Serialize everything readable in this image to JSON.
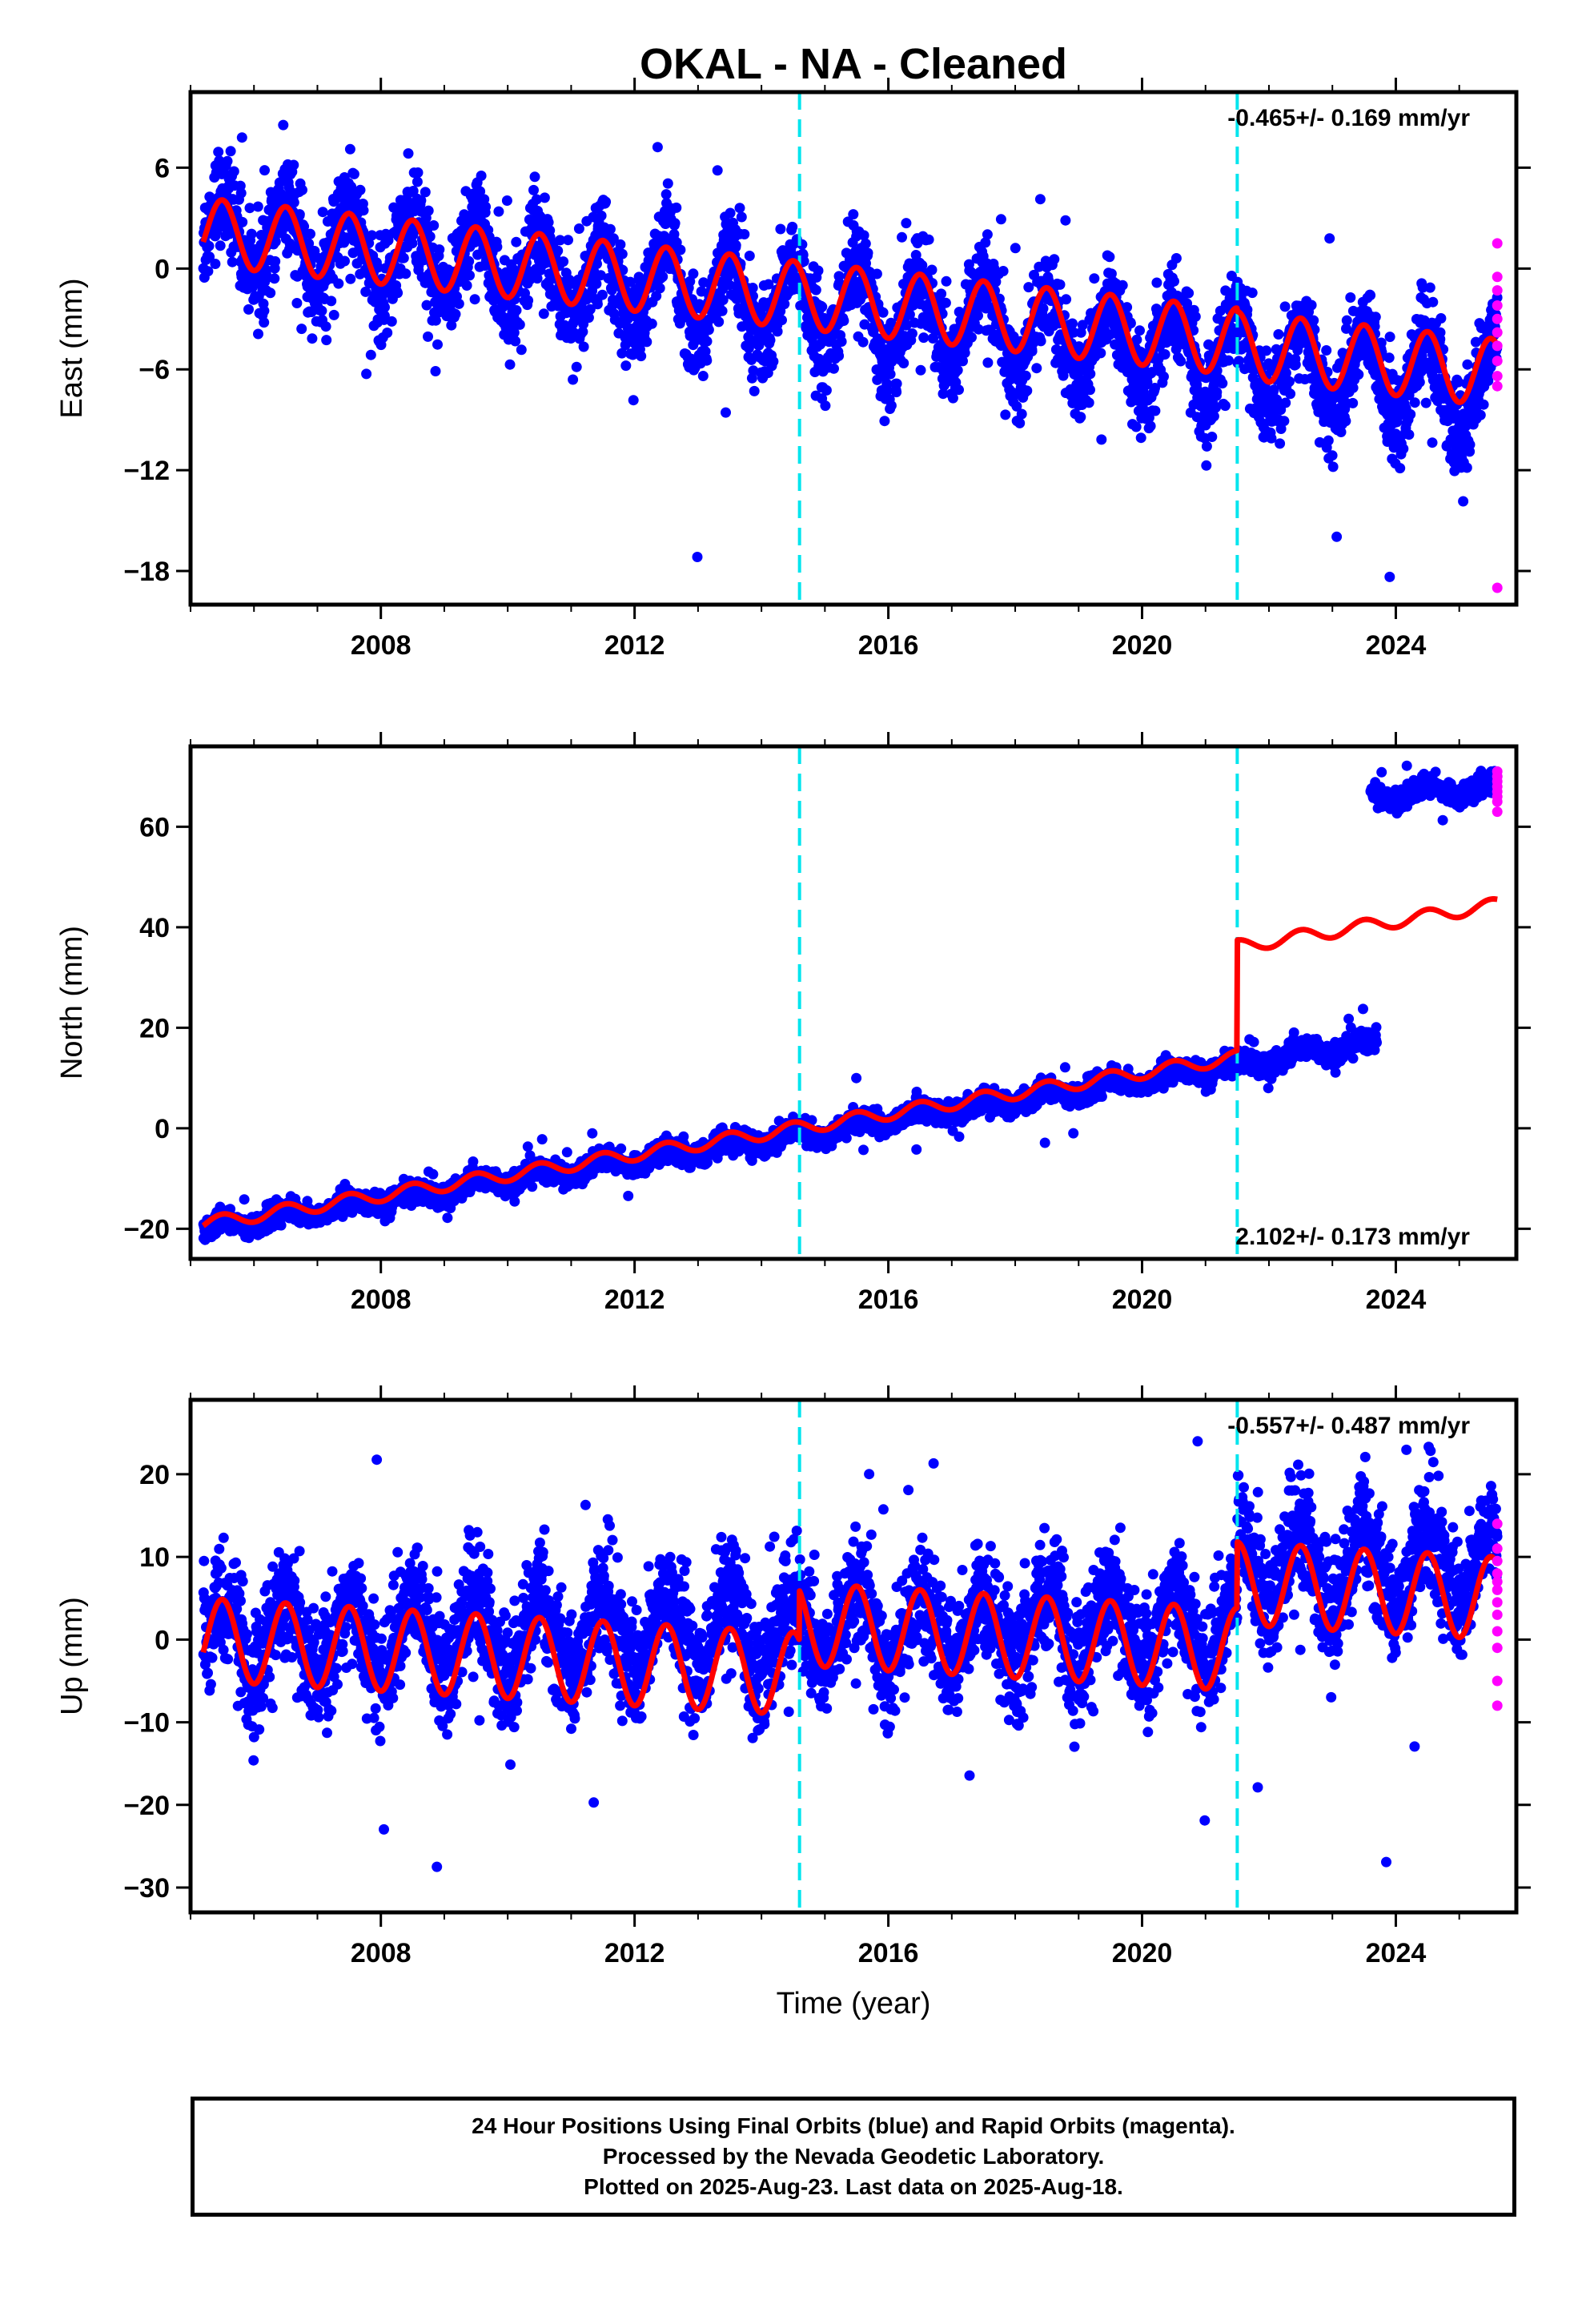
{
  "title": "OKAL  - NA - Cleaned",
  "xlabel": "Time (year)",
  "caption": [
    "24 Hour Positions Using Final Orbits (blue) and Rapid Orbits (magenta).",
    "Processed by the Nevada Geodetic Laboratory.",
    "Plotted on 2025-Aug-23. Last data on 2025-Aug-18."
  ],
  "colors": {
    "final": "#0000ff",
    "rapid": "#ff00ff",
    "model": "#ff0000",
    "offset_line": "#00e5ee"
  },
  "chart_data": [
    {
      "type": "scatter",
      "name": "east",
      "ylabel": "East (mm)",
      "rate": "-0.465+/- 0.169 mm/yr",
      "xlim": [
        2005.0,
        2025.9
      ],
      "ylim": [
        -20,
        10.5
      ],
      "xticks": [
        2008,
        2012,
        2016,
        2020,
        2024
      ],
      "yticks": [
        -18,
        -12,
        -6,
        0,
        6
      ],
      "offset_epochs": [
        2014.6,
        2021.5
      ],
      "series": [
        {
          "role": "final-orbits",
          "x_range": [
            2005.2,
            2025.6
          ],
          "trend_start": 2.2,
          "rate": -0.465,
          "annual_amplitude": 2.5,
          "spread": 2.0
        },
        {
          "role": "rapid-orbits",
          "x": [
            2025.6,
            2025.6,
            2025.6,
            2025.6,
            2025.6,
            2025.6,
            2025.6,
            2025.6,
            2025.6,
            2025.6,
            2025.6
          ],
          "y": [
            1.5,
            -0.5,
            -1.3,
            -2.2,
            -3.0,
            -3.8,
            -4.6,
            -5.5,
            -6.4,
            -7.0,
            -19.0
          ]
        },
        {
          "role": "model",
          "x_range": [
            2005.2,
            2025.6
          ],
          "y_start": 2.2,
          "y_end": -6.2,
          "annual_amplitude": 2.0,
          "offset_steps": [
            {
              "epoch": 2021.5,
              "step": -0.2
            }
          ]
        }
      ]
    },
    {
      "type": "scatter",
      "name": "north",
      "ylabel": "North (mm)",
      "rate": "2.102+/- 0.173 mm/yr",
      "xlim": [
        2005.0,
        2025.9
      ],
      "ylim": [
        -26,
        76
      ],
      "xticks": [
        2008,
        2012,
        2016,
        2020,
        2024
      ],
      "yticks": [
        -20,
        0,
        20,
        40,
        60
      ],
      "offset_epochs": [
        2014.6,
        2021.5
      ],
      "series": [
        {
          "role": "final-orbits",
          "segments": [
            {
              "x_range": [
                2005.2,
                2023.7
              ],
              "y_start": -20.0,
              "y_end": 17.0
            },
            {
              "x_range": [
                2023.6,
                2025.6
              ],
              "y_start": 66.0,
              "y_end": 68.0
            }
          ],
          "annual_amplitude": 1.2,
          "spread": 1.6
        },
        {
          "role": "rapid-orbits",
          "x": [
            2025.6,
            2025.6,
            2025.6,
            2025.6,
            2025.6,
            2025.6,
            2025.6,
            2025.6
          ],
          "y": [
            71.0,
            70.0,
            69.0,
            68.0,
            67.0,
            66.0,
            65.0,
            63.0
          ]
        },
        {
          "role": "model",
          "x_range": [
            2005.2,
            2025.6
          ],
          "y_start": -19.0,
          "y_end": 44.5,
          "annual_amplitude": 1.3,
          "offset_steps": [
            {
              "epoch": 2021.5,
              "step": 22.0
            }
          ]
        }
      ]
    },
    {
      "type": "scatter",
      "name": "up",
      "ylabel": "Up (mm)",
      "rate": "-0.557+/- 0.487 mm/yr",
      "xlim": [
        2005.0,
        2025.9
      ],
      "ylim": [
        -33,
        29
      ],
      "xticks": [
        2008,
        2012,
        2016,
        2020,
        2024
      ],
      "yticks": [
        -30,
        -20,
        -10,
        0,
        10,
        20
      ],
      "offset_epochs": [
        2014.6,
        2021.5
      ],
      "series": [
        {
          "role": "final-orbits",
          "x_range": [
            2005.2,
            2025.6
          ],
          "y_start": 0.0,
          "y_end": 2.0,
          "annual_amplitude": 4.5,
          "spread": 5.0
        },
        {
          "role": "rapid-orbits",
          "x": [
            2025.6,
            2025.6,
            2025.6,
            2025.6,
            2025.6,
            2025.6,
            2025.6,
            2025.6,
            2025.6,
            2025.6,
            2025.6,
            2025.6
          ],
          "y": [
            14.0,
            11.0,
            9.5,
            8.0,
            7.0,
            6.0,
            4.5,
            3.0,
            1.0,
            -1.0,
            -5.0,
            -8.0
          ]
        },
        {
          "role": "model",
          "x_range": [
            2005.2,
            2025.6
          ],
          "y_start": 0.0,
          "y_end": 5.0,
          "annual_amplitude": 5.0,
          "offset_steps": [
            {
              "epoch": 2014.6,
              "step": 6.0
            },
            {
              "epoch": 2021.5,
              "step": 8.0
            }
          ]
        }
      ]
    }
  ]
}
